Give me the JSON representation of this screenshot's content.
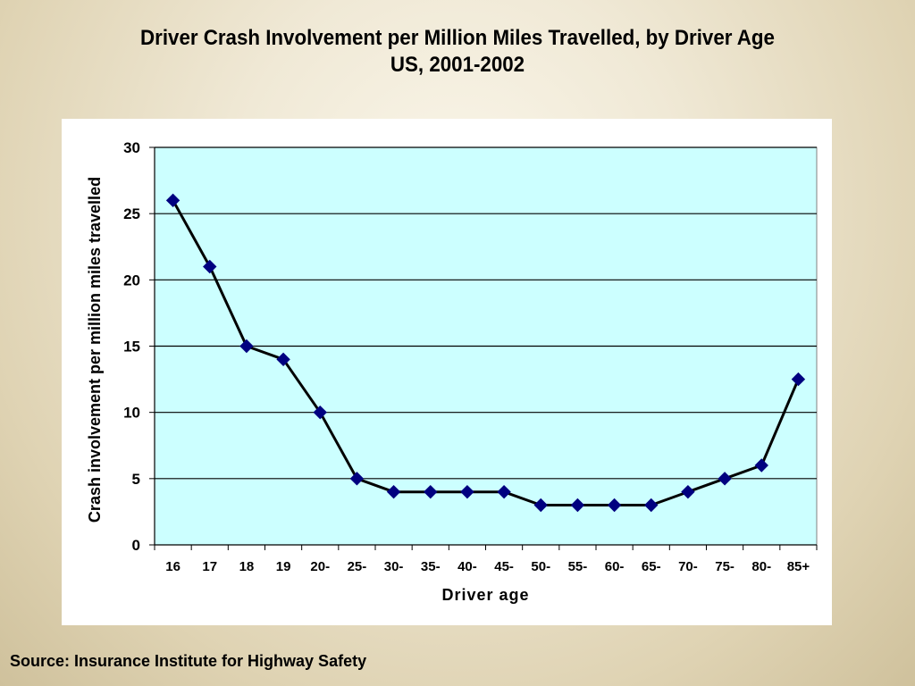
{
  "slide": {
    "title_line1": "Driver Crash Involvement per Million Miles Travelled, by Driver Age",
    "title_line2": "US, 2001-2002",
    "source": "Source: Insurance Institute for Highway Safety"
  },
  "colors": {
    "plot_background": "#ccffff",
    "marker": "#000080",
    "line": "#000000",
    "gridline": "#000000"
  },
  "chart_data": {
    "type": "line",
    "title": "Driver Crash Involvement per Million Miles Travelled, by Driver Age US, 2001-2002",
    "xlabel": "Driver age",
    "ylabel": "Crash involvement per million miles travelled",
    "categories": [
      "16",
      "17",
      "18",
      "19",
      "20-",
      "25-",
      "30-",
      "35-",
      "40-",
      "45-",
      "50-",
      "55-",
      "60-",
      "65-",
      "70-",
      "75-",
      "80-",
      "85+"
    ],
    "series": [
      {
        "values": [
          26,
          21,
          15,
          14,
          10,
          5,
          4,
          4,
          4,
          4,
          3,
          3,
          3,
          3,
          4,
          5,
          6,
          12.5
        ],
        "marker": "diamond"
      }
    ],
    "ylim": [
      0,
      30
    ],
    "yticks": [
      0,
      5,
      10,
      15,
      20,
      25,
      30
    ],
    "grid": "horizontal major gridlines",
    "legend": "none"
  }
}
